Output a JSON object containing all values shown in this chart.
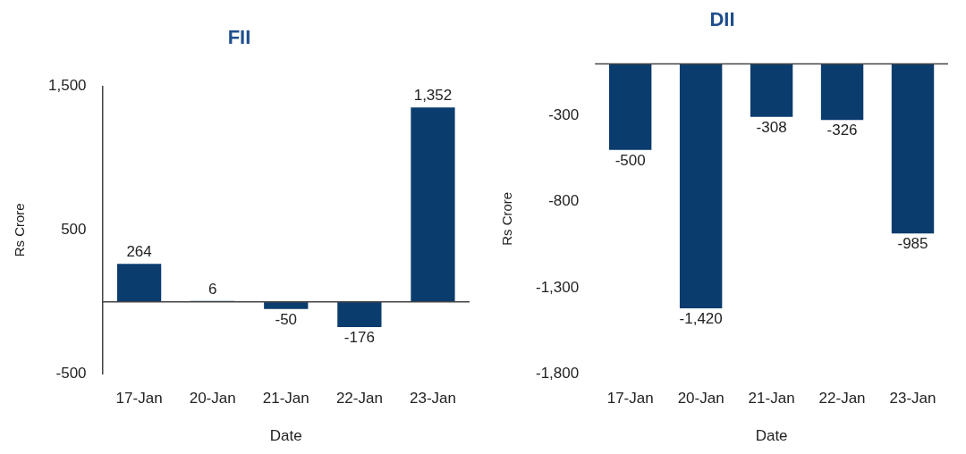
{
  "chart_data": [
    {
      "type": "bar",
      "title": "FII",
      "xlabel": "Date",
      "ylabel": "Rs Crore",
      "categories": [
        "17-Jan",
        "20-Jan",
        "21-Jan",
        "22-Jan",
        "23-Jan"
      ],
      "values": [
        264,
        6,
        -50,
        -176,
        1352
      ],
      "value_labels": [
        "264",
        "6",
        "-50",
        "-176",
        "1,352"
      ],
      "color": "#0b3c6e",
      "ylim": [
        -500,
        1500
      ],
      "yticks": [
        {
          "value": -500,
          "label": "-500"
        },
        {
          "value": 500,
          "label": "500"
        },
        {
          "value": 1500,
          "label": "1,500"
        }
      ],
      "grid": false,
      "legend": false
    },
    {
      "type": "bar",
      "title": "DII",
      "xlabel": "Date",
      "ylabel": "Rs Crore",
      "categories": [
        "17-Jan",
        "20-Jan",
        "21-Jan",
        "22-Jan",
        "23-Jan"
      ],
      "values": [
        -500,
        -1420,
        -308,
        -326,
        -985
      ],
      "value_labels": [
        "-500",
        "-1,420",
        "-308",
        "-326",
        "-985"
      ],
      "color": "#0b3c6e",
      "ylim": [
        -1800,
        0
      ],
      "yticks": [
        {
          "value": -300,
          "label": "-300"
        },
        {
          "value": -800,
          "label": "-800"
        },
        {
          "value": -1300,
          "label": "-1,300"
        },
        {
          "value": -1800,
          "label": "-1,800"
        }
      ],
      "grid": false,
      "legend": false
    }
  ]
}
